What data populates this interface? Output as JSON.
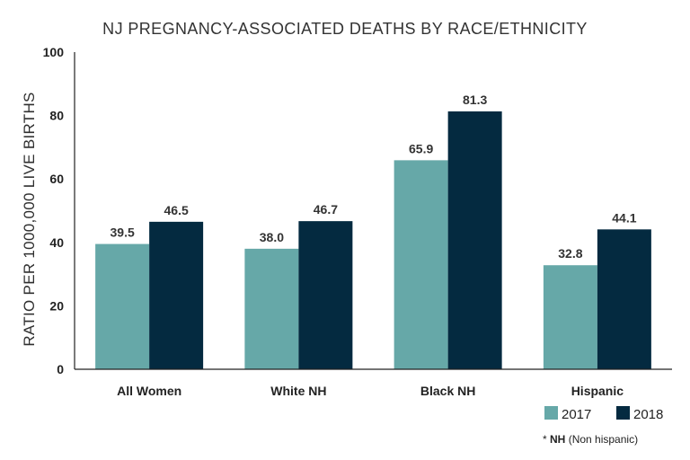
{
  "chart_data": {
    "type": "bar",
    "title": "NJ PREGNANCY-ASSOCIATED DEATHS BY RACE/ETHNICITY",
    "xlabel": "",
    "ylabel": "RATIO PER 1000,000 LIVE BIRTHS",
    "ylim": [
      0,
      100
    ],
    "yticks": [
      "0",
      "20",
      "40",
      "60",
      "80",
      "100"
    ],
    "ytick_values": [
      0,
      20,
      40,
      60,
      80,
      100
    ],
    "categories": [
      "All Women",
      "White NH",
      "Black NH",
      "Hispanic"
    ],
    "series": [
      {
        "name": "2017",
        "color": "#66a8a8",
        "values": [
          39.5,
          38.0,
          65.9,
          32.8
        ],
        "labels": [
          "39.5",
          "38.0",
          "65.9",
          "32.8"
        ]
      },
      {
        "name": "2018",
        "color": "#042a40",
        "values": [
          46.5,
          46.7,
          81.3,
          44.1
        ],
        "labels": [
          "46.5",
          "46.7",
          "81.3",
          "44.1"
        ]
      }
    ],
    "legend_position": "bottom-right",
    "grid": false,
    "footnote": {
      "marker": "* ",
      "bold": "NH",
      "text": " (Non hispanic)"
    }
  }
}
